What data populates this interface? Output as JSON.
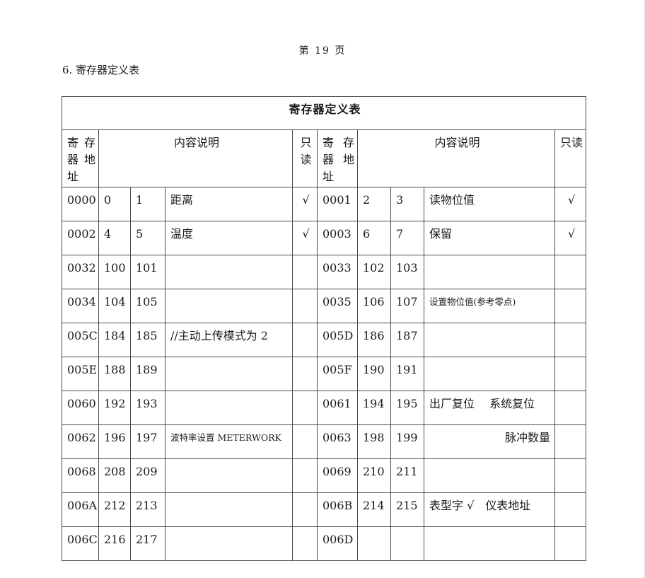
{
  "page": {
    "number_label": "第 19 页",
    "section_heading": "6. 寄存器定义表"
  },
  "table": {
    "title": "寄存器定义表",
    "headers": {
      "address": "寄存器地址",
      "description": "内容说明",
      "readonly": "只读"
    },
    "rows_left": [
      {
        "address": "0000",
        "byte_lo": "0",
        "byte_hi": "1",
        "description": "距离",
        "readonly": "√"
      },
      {
        "address": "0002",
        "byte_lo": "4",
        "byte_hi": "5",
        "description": "温度",
        "readonly": "√"
      },
      {
        "address": "0032",
        "byte_lo": "100",
        "byte_hi": "101",
        "description": "",
        "readonly": ""
      },
      {
        "address": "0034",
        "byte_lo": "104",
        "byte_hi": "105",
        "description": "",
        "readonly": ""
      },
      {
        "address": "005C",
        "byte_lo": "184",
        "byte_hi": "185",
        "description": "//主动上传模式为 2",
        "readonly": ""
      },
      {
        "address": "005E",
        "byte_lo": "188",
        "byte_hi": "189",
        "description": "",
        "readonly": ""
      },
      {
        "address": "0060",
        "byte_lo": "192",
        "byte_hi": "193",
        "description": "",
        "readonly": ""
      },
      {
        "address": "0062",
        "byte_lo": "196",
        "byte_hi": "197",
        "description": "波特率设置 METERWORK",
        "readonly": "",
        "desc_style": "small"
      },
      {
        "address": "0068",
        "byte_lo": "208",
        "byte_hi": "209",
        "description": "",
        "readonly": ""
      },
      {
        "address": "006A",
        "byte_lo": "212",
        "byte_hi": "213",
        "description": "",
        "readonly": ""
      },
      {
        "address": "006C",
        "byte_lo": "216",
        "byte_hi": "217",
        "description": "",
        "readonly": ""
      }
    ],
    "rows_right": [
      {
        "address": "0001",
        "byte_lo": "2",
        "byte_hi": "3",
        "description": "读物位值",
        "readonly": "√"
      },
      {
        "address": "0003",
        "byte_lo": "6",
        "byte_hi": "7",
        "description": "保留",
        "readonly": "√"
      },
      {
        "address": "0033",
        "byte_lo": "102",
        "byte_hi": "103",
        "description": "",
        "readonly": ""
      },
      {
        "address": "0035",
        "byte_lo": "106",
        "byte_hi": "107",
        "description": "设置物位值(参考零点)",
        "readonly": "",
        "desc_style": "small"
      },
      {
        "address": "005D",
        "byte_lo": "186",
        "byte_hi": "187",
        "description": "",
        "readonly": ""
      },
      {
        "address": "005F",
        "byte_lo": "190",
        "byte_hi": "191",
        "description": "",
        "readonly": ""
      },
      {
        "address": "0061",
        "byte_lo": "194",
        "byte_hi": "195",
        "description": "出厂复位　 系统复位",
        "readonly": ""
      },
      {
        "address": "0063",
        "byte_lo": "198",
        "byte_hi": "199",
        "description": "脉冲数量",
        "readonly": "",
        "desc_style": "right"
      },
      {
        "address": "0069",
        "byte_lo": "210",
        "byte_hi": "211",
        "description": "",
        "readonly": ""
      },
      {
        "address": "006B",
        "byte_lo": "214",
        "byte_hi": "215",
        "description": "表型字 √　仪表地址",
        "readonly": ""
      },
      {
        "address": "006D",
        "byte_lo": "",
        "byte_hi": "",
        "description": "",
        "readonly": ""
      }
    ]
  }
}
